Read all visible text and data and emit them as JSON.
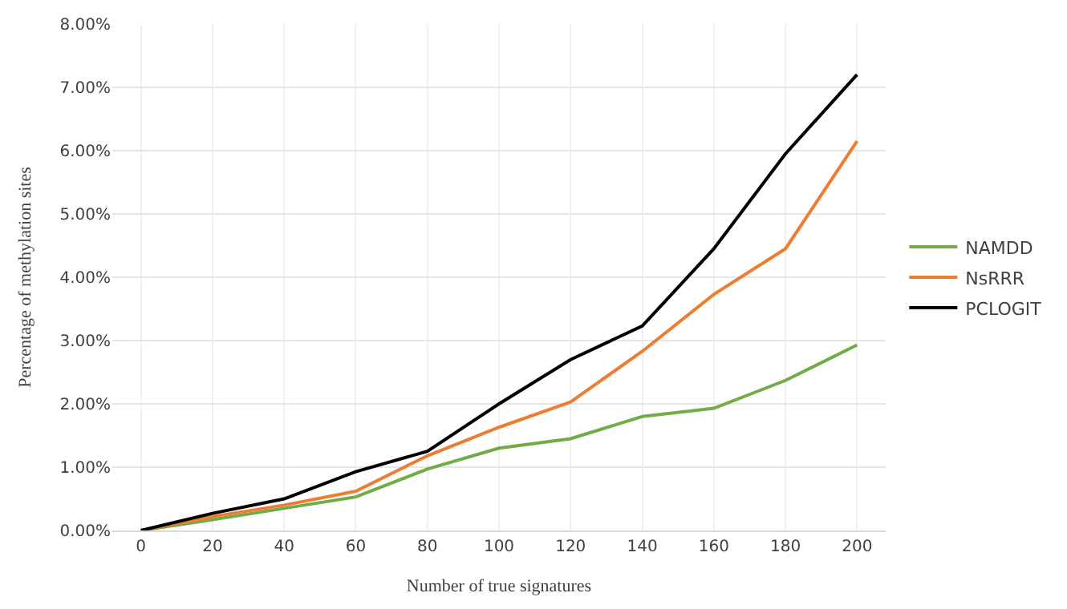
{
  "chart_data": {
    "type": "line",
    "xlabel": "Number of true signatures",
    "ylabel": "Percentage of methylation sites",
    "categories": [
      "0",
      "20",
      "40",
      "60",
      "80",
      "100",
      "120",
      "140",
      "160",
      "180",
      "200"
    ],
    "series": [
      {
        "name": "NAMDD",
        "color": "#70ad47",
        "values": [
          0,
          0.17,
          0.35,
          0.53,
          0.97,
          1.3,
          1.45,
          1.8,
          1.93,
          2.37,
          2.93
        ]
      },
      {
        "name": "NsRRR",
        "color": "#ed7d31",
        "values": [
          0,
          0.22,
          0.4,
          0.62,
          1.18,
          1.63,
          2.03,
          2.83,
          3.73,
          4.45,
          6.15
        ]
      },
      {
        "name": "PCLOGIT",
        "color": "#000000",
        "values": [
          0,
          0.27,
          0.5,
          0.93,
          1.25,
          2.0,
          2.7,
          3.23,
          4.45,
          5.95,
          7.2
        ]
      }
    ],
    "ylim": [
      0,
      8
    ],
    "yticks": [
      {
        "value": 0,
        "label": "0.00%"
      },
      {
        "value": 1,
        "label": "1.00%"
      },
      {
        "value": 2,
        "label": "2.00%"
      },
      {
        "value": 3,
        "label": "3.00%"
      },
      {
        "value": 4,
        "label": "4.00%"
      },
      {
        "value": 5,
        "label": "5.00%"
      },
      {
        "value": 6,
        "label": "6.00%"
      },
      {
        "value": 7,
        "label": "7.00%"
      },
      {
        "value": 8,
        "label": "8.00%"
      }
    ],
    "grid": true,
    "legend": "right",
    "marker": "none",
    "line_style": "solid"
  }
}
